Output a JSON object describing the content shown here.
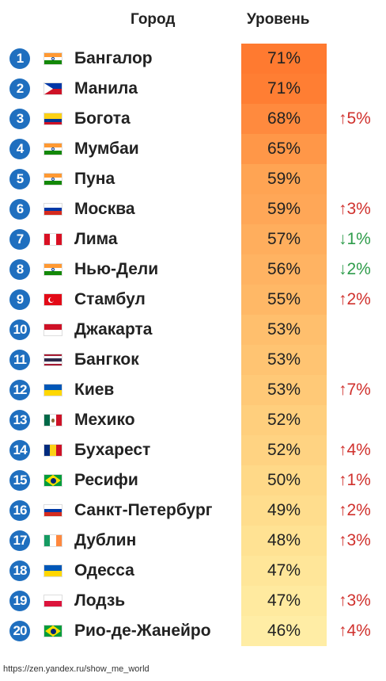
{
  "header": {
    "city": "Город",
    "level": "Уровень"
  },
  "rows": [
    {
      "rank": "1",
      "city": "Бангалор",
      "level": "71%",
      "change": "",
      "dir": "",
      "flag": "india",
      "color": "#ff7a30"
    },
    {
      "rank": "2",
      "city": "Манила",
      "level": "71%",
      "change": "",
      "dir": "",
      "flag": "philippines",
      "color": "#ff7e33"
    },
    {
      "rank": "3",
      "city": "Богота",
      "level": "68%",
      "change": "↑5%",
      "dir": "up",
      "flag": "colombia",
      "color": "#ff8a3e"
    },
    {
      "rank": "4",
      "city": "Мумбаи",
      "level": "65%",
      "change": "",
      "dir": "",
      "flag": "india",
      "color": "#ff9748"
    },
    {
      "rank": "5",
      "city": "Пуна",
      "level": "59%",
      "change": "",
      "dir": "",
      "flag": "india",
      "color": "#ffa453"
    },
    {
      "rank": "6",
      "city": "Москва",
      "level": "59%",
      "change": "↑3%",
      "dir": "up",
      "flag": "russia",
      "color": "#ffa757"
    },
    {
      "rank": "7",
      "city": "Лима",
      "level": "57%",
      "change": "↓1%",
      "dir": "down",
      "flag": "peru",
      "color": "#ffae5d"
    },
    {
      "rank": "8",
      "city": "Нью-Дели",
      "level": "56%",
      "change": "↓2%",
      "dir": "down",
      "flag": "india",
      "color": "#ffb362"
    },
    {
      "rank": "9",
      "city": "Стамбул",
      "level": "55%",
      "change": "↑2%",
      "dir": "up",
      "flag": "turkey",
      "color": "#ffb866"
    },
    {
      "rank": "10",
      "city": "Джакарта",
      "level": "53%",
      "change": "",
      "dir": "",
      "flag": "indonesia",
      "color": "#ffbf6d"
    },
    {
      "rank": "11",
      "city": "Бангкок",
      "level": "53%",
      "change": "",
      "dir": "",
      "flag": "thailand",
      "color": "#ffc472"
    },
    {
      "rank": "12",
      "city": "Киев",
      "level": "53%",
      "change": "↑7%",
      "dir": "up",
      "flag": "ukraine",
      "color": "#ffc977"
    },
    {
      "rank": "13",
      "city": "Мехико",
      "level": "52%",
      "change": "",
      "dir": "",
      "flag": "mexico",
      "color": "#ffcf7d"
    },
    {
      "rank": "14",
      "city": "Бухарест",
      "level": "52%",
      "change": "↑4%",
      "dir": "up",
      "flag": "romania",
      "color": "#ffd382"
    },
    {
      "rank": "15",
      "city": "Ресифи",
      "level": "50%",
      "change": "↑1%",
      "dir": "up",
      "flag": "brazil",
      "color": "#ffd988"
    },
    {
      "rank": "16",
      "city": "Санкт-Петербург",
      "level": "49%",
      "change": "↑2%",
      "dir": "up",
      "flag": "russia",
      "color": "#ffdd8d"
    },
    {
      "rank": "17",
      "city": "Дублин",
      "level": "48%",
      "change": "↑3%",
      "dir": "up",
      "flag": "ireland",
      "color": "#ffe293"
    },
    {
      "rank": "18",
      "city": "Одесса",
      "level": "47%",
      "change": "",
      "dir": "",
      "flag": "ukraine",
      "color": "#ffe699"
    },
    {
      "rank": "19",
      "city": "Лодзь",
      "level": "47%",
      "change": "↑3%",
      "dir": "up",
      "flag": "poland",
      "color": "#ffea9f"
    },
    {
      "rank": "20",
      "city": "Рио-де-Жанейро",
      "level": "46%",
      "change": "↑4%",
      "dir": "up",
      "flag": "brazil",
      "color": "#ffeda5"
    }
  ],
  "source": "https://zen.yandex.ru/show_me_world"
}
